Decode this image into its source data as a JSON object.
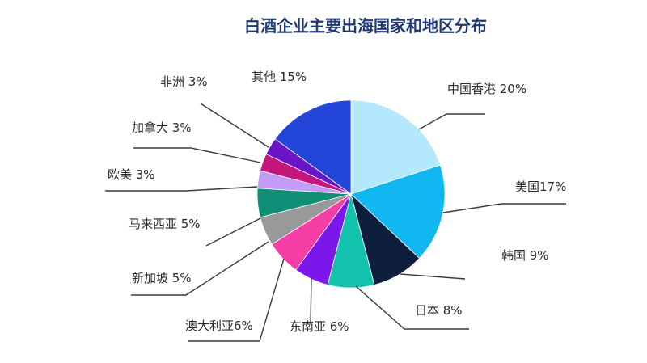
{
  "chart_data": {
    "type": "pie",
    "title": "白酒企业主要出海国家和地区分布",
    "categories": [
      "中国香港",
      "美国",
      "韩国",
      "日本",
      "东南亚",
      "澳大利亚",
      "新加坡",
      "马来西亚",
      "欧美",
      "加拿大",
      "非洲",
      "其他"
    ],
    "values": [
      20,
      17,
      9,
      8,
      6,
      6,
      5,
      5,
      3,
      3,
      3,
      15
    ],
    "labels": [
      "中国香港 20%",
      "美国17%",
      "韩国 9%",
      "日本 8%",
      "东南亚 6%",
      "澳大利亚6%",
      "新加坡 5%",
      "马来西亚 5%",
      "欧美 3%",
      "加拿大 3%",
      "非洲 3%",
      "其他 15%"
    ],
    "colors": [
      "#b3e8fd",
      "#10b7f0",
      "#0e1f3d",
      "#13c2ad",
      "#7b17ea",
      "#f53fa7",
      "#999999",
      "#0f8f76",
      "#c39cf8",
      "#c4177e",
      "#6a16c8",
      "#2346d8"
    ],
    "units": "%"
  }
}
